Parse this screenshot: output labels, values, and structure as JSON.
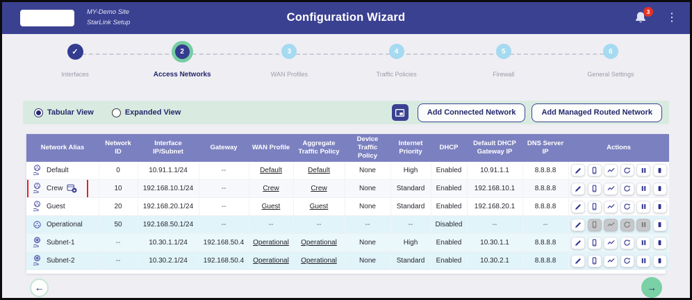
{
  "header": {
    "site_name": "MY-Demo Site",
    "site_subtitle": "StarLink Setup",
    "title": "Configuration Wizard",
    "notification_count": "3"
  },
  "icons": {
    "header": [
      "bell-icon",
      "kebab-menu-icon"
    ],
    "toolbar": [
      "radio-icon",
      "window-view-icon"
    ],
    "alias": [
      "network-share-icon",
      "network-circle-icon",
      "network-subnet-icon",
      "network-lock-icon"
    ],
    "actions": [
      "edit-icon",
      "devices-icon",
      "activity-icon",
      "renew-icon",
      "pause-icon",
      "stop-icon"
    ],
    "stepper": [
      "check-icon"
    ],
    "footer": [
      "arrow-left-icon",
      "arrow-right-icon"
    ]
  },
  "stepper": {
    "steps": [
      {
        "number": "1",
        "label": "Interfaces",
        "state": "completed"
      },
      {
        "number": "2",
        "label": "Access Networks",
        "state": "active"
      },
      {
        "number": "3",
        "label": "WAN Profiles",
        "state": "pending"
      },
      {
        "number": "4",
        "label": "Traffic Policies",
        "state": "pending"
      },
      {
        "number": "5",
        "label": "Firewall",
        "state": "pending"
      },
      {
        "number": "6",
        "label": "General Settings",
        "state": "pending"
      }
    ]
  },
  "toolbar": {
    "view_options": [
      {
        "label": "Tabular View",
        "selected": true
      },
      {
        "label": "Expanded View",
        "selected": false
      }
    ],
    "buttons": [
      {
        "label": "Add Connected Network"
      },
      {
        "label": "Add Managed Routed Network"
      }
    ]
  },
  "table": {
    "columns": [
      "Network Alias",
      "Network ID",
      "Interface IP/Subnet",
      "Gateway",
      "WAN Profile",
      "Aggregate Traffic Policy",
      "Device Traffic Policy",
      "Internet Priority",
      "DHCP",
      "Default DHCP Gateway IP",
      "DNS Server IP",
      "Actions"
    ],
    "action_buttons": [
      "edit",
      "devices",
      "activity",
      "renew",
      "pause",
      "stop"
    ],
    "rows": [
      {
        "alias": "Default",
        "icon": "network-share",
        "locked": false,
        "highlighted": false,
        "tinted": false,
        "network_id": "0",
        "interface_ip_subnet": "10.91.1.1/24",
        "gateway": "--",
        "wan_profile": "Default",
        "aggregate_traffic_policy": "Default",
        "device_traffic_policy": "None",
        "internet_priority": "High",
        "dhcp": "Enabled",
        "default_dhcp_gateway_ip": "10.91.1.1",
        "dns_server_ip": "8.8.8.8",
        "disabled_actions": []
      },
      {
        "alias": "Crew",
        "icon": "network-share",
        "locked": true,
        "highlighted": true,
        "tinted": false,
        "network_id": "10",
        "interface_ip_subnet": "192.168.10.1/24",
        "gateway": "--",
        "wan_profile": "Crew",
        "aggregate_traffic_policy": "Crew",
        "device_traffic_policy": "None",
        "internet_priority": "Standard",
        "dhcp": "Enabled",
        "default_dhcp_gateway_ip": "192.168.10.1",
        "dns_server_ip": "8.8.8.8",
        "disabled_actions": []
      },
      {
        "alias": "Guest",
        "icon": "network-share",
        "locked": false,
        "highlighted": false,
        "tinted": false,
        "network_id": "20",
        "interface_ip_subnet": "192.168.20.1/24",
        "gateway": "--",
        "wan_profile": "Guest",
        "aggregate_traffic_policy": "Guest",
        "device_traffic_policy": "None",
        "internet_priority": "Standard",
        "dhcp": "Enabled",
        "default_dhcp_gateway_ip": "192.168.20.1",
        "dns_server_ip": "8.8.8.8",
        "disabled_actions": []
      },
      {
        "alias": "Operational",
        "icon": "network-circle",
        "locked": false,
        "highlighted": false,
        "tinted": true,
        "network_id": "50",
        "interface_ip_subnet": "192.168.50.1/24",
        "gateway": "--",
        "wan_profile": "--",
        "aggregate_traffic_policy": "--",
        "device_traffic_policy": "--",
        "internet_priority": "--",
        "dhcp": "Disabled",
        "default_dhcp_gateway_ip": "--",
        "dns_server_ip": "--",
        "disabled_actions": [
          "devices",
          "activity",
          "renew",
          "pause"
        ]
      },
      {
        "alias": "Subnet-1",
        "icon": "network-subnet",
        "locked": false,
        "highlighted": false,
        "tinted": true,
        "network_id": "--",
        "interface_ip_subnet": "10.30.1.1/24",
        "gateway": "192.168.50.4",
        "wan_profile": "Operational",
        "aggregate_traffic_policy": "Operational",
        "device_traffic_policy": "None",
        "internet_priority": "High",
        "dhcp": "Enabled",
        "default_dhcp_gateway_ip": "10.30.1.1",
        "dns_server_ip": "8.8.8.8",
        "disabled_actions": []
      },
      {
        "alias": "Subnet-2",
        "icon": "network-subnet",
        "locked": false,
        "highlighted": false,
        "tinted": true,
        "network_id": "--",
        "interface_ip_subnet": "10.30.2.1/24",
        "gateway": "192.168.50.4",
        "wan_profile": "Operational",
        "aggregate_traffic_policy": "Operational",
        "device_traffic_policy": "None",
        "internet_priority": "Standard",
        "dhcp": "Enabled",
        "default_dhcp_gateway_ip": "10.30.2.1",
        "dns_server_ip": "8.8.8.8",
        "disabled_actions": []
      }
    ]
  },
  "annotation": {
    "highlight_target": "Crew",
    "color": "#ea1d1d"
  },
  "footer": {
    "back_arrow": "←",
    "next_arrow": "→"
  },
  "colors": {
    "header_bg": "#3b4191",
    "table_header_bg": "#7b80c0",
    "active_ring_green": "#76cda2",
    "pending_step_blue": "#a5daf1",
    "toolbar_bg": "#d9ebe1",
    "tinted_row_bg": "#e1f4f9",
    "badge_red": "#e63222",
    "accent_navy": "#23276b",
    "highlight_red": "#ea1d1d"
  }
}
